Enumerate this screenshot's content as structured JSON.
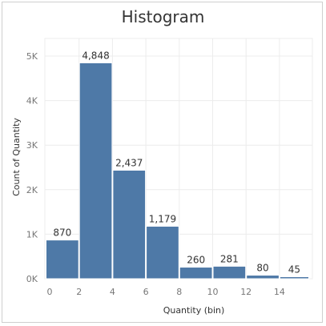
{
  "chart_data": {
    "type": "bar",
    "title": "Histogram",
    "xlabel": "Quantity (bin)",
    "ylabel": "Count of Quantity",
    "bins": [
      {
        "start": 0,
        "end": 2,
        "value": 870,
        "label": "870"
      },
      {
        "start": 2,
        "end": 4,
        "value": 4848,
        "label": "4,848"
      },
      {
        "start": 4,
        "end": 6,
        "value": 2437,
        "label": "2,437"
      },
      {
        "start": 6,
        "end": 8,
        "value": 1179,
        "label": "1,179"
      },
      {
        "start": 8,
        "end": 10,
        "value": 260,
        "label": "260"
      },
      {
        "start": 10,
        "end": 12,
        "value": 281,
        "label": "281"
      },
      {
        "start": 12,
        "end": 14,
        "value": 80,
        "label": "80"
      },
      {
        "start": 14,
        "end": 16,
        "value": 45,
        "label": "45"
      }
    ],
    "x_ticks": [
      {
        "value": 0,
        "label": "0"
      },
      {
        "value": 2,
        "label": "2"
      },
      {
        "value": 4,
        "label": "4"
      },
      {
        "value": 6,
        "label": "6"
      },
      {
        "value": 8,
        "label": "8"
      },
      {
        "value": 10,
        "label": "10"
      },
      {
        "value": 12,
        "label": "12"
      },
      {
        "value": 14,
        "label": "14"
      }
    ],
    "y_ticks": [
      {
        "value": 0,
        "label": "0K"
      },
      {
        "value": 1000,
        "label": "1K"
      },
      {
        "value": 2000,
        "label": "2K"
      },
      {
        "value": 3000,
        "label": "3K"
      },
      {
        "value": 4000,
        "label": "4K"
      },
      {
        "value": 5000,
        "label": "5K"
      }
    ],
    "ylim": [
      0,
      5000
    ],
    "grid": true,
    "bar_color": "#4e79a7"
  }
}
